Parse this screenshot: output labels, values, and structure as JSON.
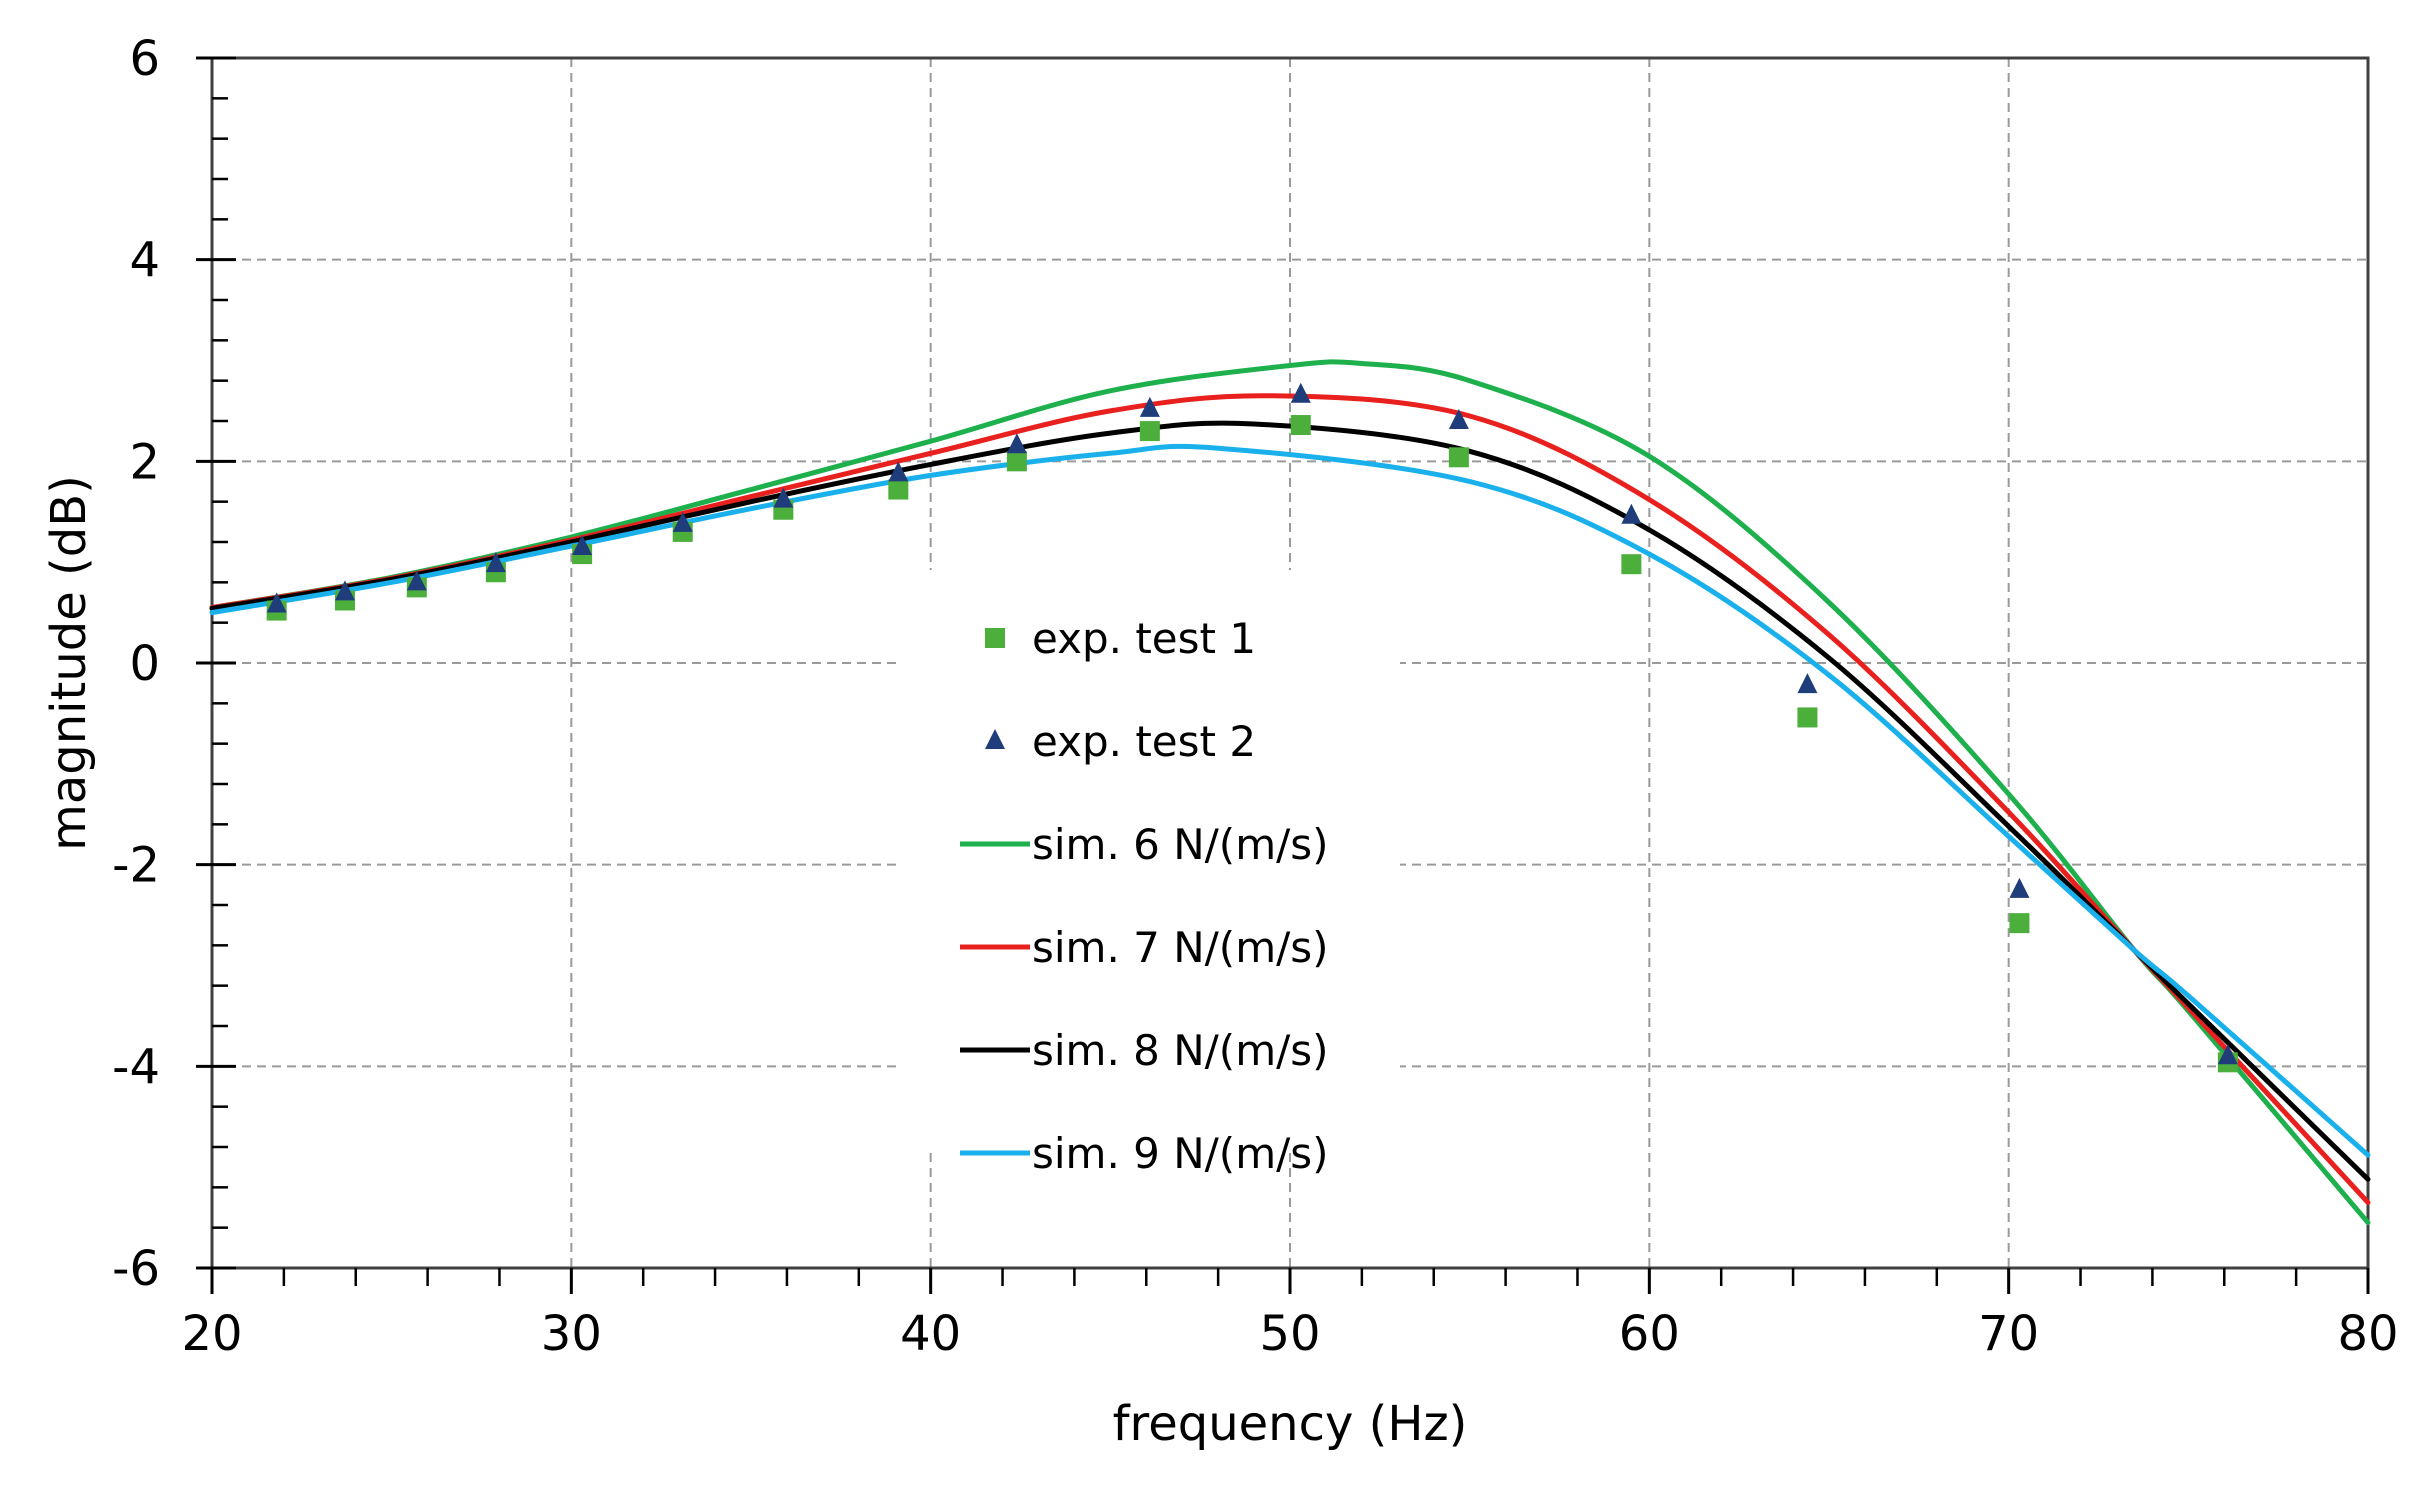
{
  "chart_data": {
    "type": "scatter",
    "title": "",
    "xlabel": "frequency (Hz)",
    "ylabel": "magnitude (dB)",
    "xlim": [
      20,
      80
    ],
    "ylim": [
      -6,
      6
    ],
    "xticks": [
      20,
      30,
      40,
      50,
      60,
      70,
      80
    ],
    "xtick_labels": [
      "20",
      "30",
      "40",
      "50",
      "60",
      "70",
      "80"
    ],
    "yticks": [
      -6,
      -4,
      -2,
      0,
      2,
      4,
      6
    ],
    "ytick_labels": [
      "-6",
      "-4",
      "-2",
      "0",
      "2",
      "4",
      "6"
    ],
    "x_minor_step": 2,
    "y_minor_step": 0.4,
    "grid": true,
    "legend_position": "center",
    "series": [
      {
        "name": "exp. test 1",
        "kind": "markers",
        "marker": "square",
        "color": "#4caf3c",
        "x": [
          21.8,
          23.7,
          25.7,
          27.9,
          30.3,
          33.1,
          35.9,
          39.1,
          42.4,
          46.1,
          50.3,
          54.7,
          59.5,
          64.4,
          70.3,
          76.1
        ],
        "y": [
          0.52,
          0.62,
          0.75,
          0.9,
          1.08,
          1.3,
          1.52,
          1.72,
          2.0,
          2.3,
          2.36,
          2.04,
          0.98,
          -0.54,
          -2.58,
          -3.96
        ]
      },
      {
        "name": "exp. test 2",
        "kind": "markers",
        "marker": "triangle",
        "color": "#1f3d7a",
        "x": [
          21.8,
          23.7,
          25.7,
          27.9,
          30.3,
          33.1,
          35.9,
          39.1,
          42.4,
          46.1,
          50.3,
          54.7,
          59.5,
          64.4,
          70.3,
          76.1
        ],
        "y": [
          0.58,
          0.7,
          0.8,
          0.98,
          1.15,
          1.38,
          1.62,
          1.88,
          2.16,
          2.52,
          2.66,
          2.4,
          1.46,
          -0.22,
          -2.25,
          -3.9
        ]
      },
      {
        "name": "sim. 6 N/(m/s)",
        "kind": "line",
        "color": "#1db04c",
        "x": [
          20,
          25,
          30,
          35,
          40,
          45,
          50,
          52,
          55,
          60,
          65,
          70,
          73.5,
          75,
          80
        ],
        "y": [
          0.55,
          0.85,
          1.25,
          1.72,
          2.2,
          2.7,
          2.95,
          2.97,
          2.8,
          2.05,
          0.6,
          -1.3,
          -2.85,
          -3.45,
          -5.55
        ]
      },
      {
        "name": "sim. 7 N/(m/s)",
        "kind": "line",
        "color": "#e8201e",
        "x": [
          20,
          25,
          30,
          35,
          40,
          45,
          49.5,
          55,
          60,
          65,
          70,
          73.5,
          75,
          80
        ],
        "y": [
          0.55,
          0.84,
          1.22,
          1.65,
          2.08,
          2.5,
          2.65,
          2.45,
          1.62,
          0.28,
          -1.48,
          -2.85,
          -3.42,
          -5.35
        ]
      },
      {
        "name": "sim. 8 N/(m/s)",
        "kind": "line",
        "color": "#000000",
        "x": [
          20,
          25,
          30,
          35,
          40,
          45,
          49,
          55,
          60,
          65,
          70,
          73.5,
          75,
          80
        ],
        "y": [
          0.54,
          0.83,
          1.2,
          1.6,
          1.97,
          2.28,
          2.37,
          2.1,
          1.32,
          0.05,
          -1.62,
          -2.85,
          -3.38,
          -5.12
        ]
      },
      {
        "name": "sim. 9 N/(m/s)",
        "kind": "line",
        "color": "#1ab0ec",
        "x": [
          20,
          25,
          30,
          35,
          40,
          45,
          48,
          55,
          60,
          65,
          70,
          73.5,
          75,
          80
        ],
        "y": [
          0.5,
          0.8,
          1.16,
          1.53,
          1.86,
          2.08,
          2.13,
          1.8,
          1.08,
          -0.12,
          -1.72,
          -2.85,
          -3.3,
          -4.88
        ]
      }
    ]
  }
}
